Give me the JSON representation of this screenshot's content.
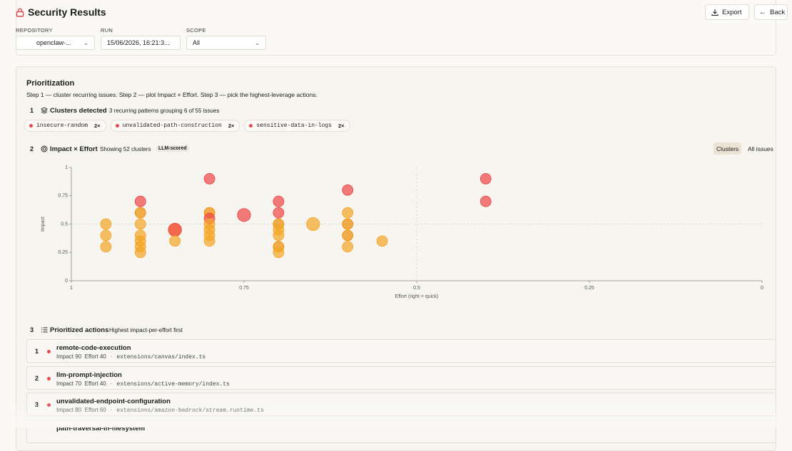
{
  "header": {
    "title": "Security Results",
    "export": "Export",
    "back": "Back"
  },
  "filters": [
    {
      "label": "REPOSITORY",
      "value": "openclaw-..."
    },
    {
      "label": "RUN",
      "value": "15/06/2026, 16:21:3..."
    },
    {
      "label": "SCOPE",
      "value": "All"
    }
  ],
  "prioritization": {
    "title": "Prioritization",
    "intro": "Step 1 — cluster recurring issues. Step 2 — plot Impact × Effort. Step 3 — pick the highest-leverage actions.",
    "clusters": {
      "step": "1",
      "title": "Clusters detected",
      "summary": "3 recurring patterns grouping 6 of 55 issues",
      "chips": [
        {
          "name": "insecure-random",
          "count": "2×"
        },
        {
          "name": "unvalidated-path-construction",
          "count": "2×"
        },
        {
          "name": "sensitive-data-in-logs",
          "count": "2×"
        }
      ]
    },
    "matrix": {
      "step": "2",
      "title": "Impact × Effort",
      "summary": "Showing 52 clusters",
      "badge": "LLM-scored",
      "toggles": [
        "Clusters",
        "All issues"
      ],
      "chart": {
        "type": "scatter",
        "x_label": "Effort (right = quick)",
        "y_label": "Impact",
        "xlim": [
          1,
          0
        ],
        "ylim": [
          0,
          1
        ],
        "xticks": [
          1,
          0.75,
          0.5,
          0.25,
          0
        ],
        "yticks": [
          0,
          0.25,
          0.5,
          0.75,
          1
        ],
        "x_midline": 0.5,
        "y_midline": 0.5,
        "points": {
          "x": [
            0.95,
            0.95,
            0.95,
            0.9,
            0.9,
            0.9,
            0.9,
            0.9,
            0.9,
            0.9,
            0.85,
            0.85,
            0.85,
            0.8,
            0.8,
            0.8,
            0.8,
            0.8,
            0.8,
            0.8,
            0.75,
            0.7,
            0.7,
            0.7,
            0.7,
            0.7,
            0.7,
            0.7,
            0.65,
            0.6,
            0.6,
            0.6,
            0.6,
            0.6,
            0.55,
            0.4,
            0.4
          ],
          "values": [
            0.5,
            0.4,
            0.3,
            0.7,
            0.6,
            0.5,
            0.4,
            0.35,
            0.3,
            0.25,
            0.45,
            0.45,
            0.35,
            0.9,
            0.6,
            0.55,
            0.5,
            0.45,
            0.4,
            0.35,
            0.58,
            0.7,
            0.6,
            0.5,
            0.45,
            0.4,
            0.3,
            0.25,
            0.5,
            0.8,
            0.6,
            0.5,
            0.4,
            0.3,
            0.35,
            0.9,
            0.7
          ],
          "sizes": [
            1,
            1,
            1,
            1,
            1,
            1,
            1,
            1,
            1,
            1,
            1.5,
            1.5,
            1,
            1,
            1,
            1,
            1,
            1,
            1,
            1,
            1.5,
            1,
            1,
            1,
            1,
            1,
            1,
            1,
            1.5,
            1,
            1,
            1,
            1,
            1,
            1,
            1,
            1
          ],
          "colors": [
            "#f5a524",
            "#f5a524",
            "#f5a524",
            "#ef4444",
            "#f08c00",
            "#f5a524",
            "#f5a524",
            "#f5a524",
            "#f5a524",
            "#f5a524",
            "#f5a524",
            "#ef4444",
            "#f5a524",
            "#ef4444",
            "#f08c00",
            "#ef4444",
            "#f5a524",
            "#f5a524",
            "#f5a524",
            "#f5a524",
            "#ef4444",
            "#ef4444",
            "#ef4444",
            "#f08c00",
            "#f5a524",
            "#f5a524",
            "#f08c00",
            "#f5a524",
            "#f5a524",
            "#ef4444",
            "#f5a524",
            "#f08c00",
            "#f08c00",
            "#f5a524",
            "#f5a524",
            "#ef4444",
            "#ef4444"
          ]
        }
      }
    },
    "actions": {
      "step": "3",
      "title": "Prioritized actions",
      "summary": "Highest impact-per-effort first",
      "impact_label": "Impact",
      "effort_label": "Effort",
      "items": [
        {
          "rank": 1,
          "name": "remote-code-execution",
          "impact": 90,
          "effort": 40,
          "path": "extensions/canvas/index.ts"
        },
        {
          "rank": 2,
          "name": "llm-prompt-injection",
          "impact": 70,
          "effort": 40,
          "path": "extensions/active-memory/index.ts"
        },
        {
          "rank": 3,
          "name": "unvalidated-endpoint-configuration",
          "impact": 80,
          "effort": 60,
          "path": "extensions/amazon-bedrock/stream.runtime.ts"
        },
        {
          "name": "path-traversal-in-filesystem"
        }
      ]
    }
  }
}
